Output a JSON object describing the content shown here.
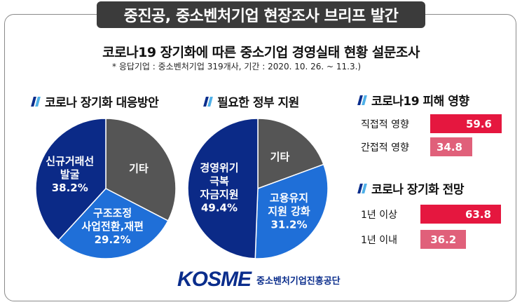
{
  "banner": {
    "title": "중진공, 중소벤처기업 현장조사 브리프 발간"
  },
  "survey": {
    "title": "코로나19 장기화에 따른 중소기업 경영실태 현황 설문조사",
    "note": "* 응답기업 : 중소벤처기업 319개사,  기간 : 2020. 10. 26. ~ 11.3.)"
  },
  "colors": {
    "dark_navy": "#0b2a87",
    "blue": "#1f6fd8",
    "gray": "#555555",
    "red": "#e5173f",
    "pink": "#e0607a"
  },
  "chart_data": [
    {
      "type": "pie",
      "title": "코로나 장기화 대응방안",
      "slices": [
        {
          "label": "기타",
          "label_lines": [
            "기타"
          ],
          "value": 32.6,
          "value_text": "",
          "color": "#555555"
        },
        {
          "label": "구조조정 사업전환,재편",
          "label_lines": [
            "구조조정",
            "사업전환,재편"
          ],
          "value": 29.2,
          "value_text": "29.2%",
          "color": "#1f6fd8"
        },
        {
          "label": "신규거래선 발굴",
          "label_lines": [
            "신규거래선",
            "발굴"
          ],
          "value": 38.2,
          "value_text": "38.2%",
          "color": "#0b2a87"
        }
      ]
    },
    {
      "type": "pie",
      "title": "필요한 정부 지원",
      "slices": [
        {
          "label": "기타",
          "label_lines": [
            "기타"
          ],
          "value": 19.4,
          "value_text": "",
          "color": "#555555"
        },
        {
          "label": "고용유지 지원 강화",
          "label_lines": [
            "고용유지",
            "지원 강화"
          ],
          "value": 31.2,
          "value_text": "31.2%",
          "color": "#1f6fd8"
        },
        {
          "label": "경영위기 극복 자금지원",
          "label_lines": [
            "경영위기",
            "극복",
            "자금지원"
          ],
          "value": 49.4,
          "value_text": "49.4%",
          "color": "#0b2a87"
        }
      ]
    },
    {
      "type": "bar",
      "title": "코로나19 피해 영향",
      "categories": [
        "직접적 영향",
        "간접적 영향"
      ],
      "values": [
        59.6,
        34.8
      ],
      "colors": [
        "#e5173f",
        "#e0607a"
      ]
    },
    {
      "type": "bar",
      "title": "코로나 장기화 전망",
      "categories": [
        "1년 이상",
        "1년 이내"
      ],
      "values": [
        63.8,
        36.2
      ],
      "colors": [
        "#e5173f",
        "#e0607a"
      ]
    }
  ],
  "logo": {
    "mark": "KOSME",
    "name": "중소벤처기업진흥공단"
  }
}
